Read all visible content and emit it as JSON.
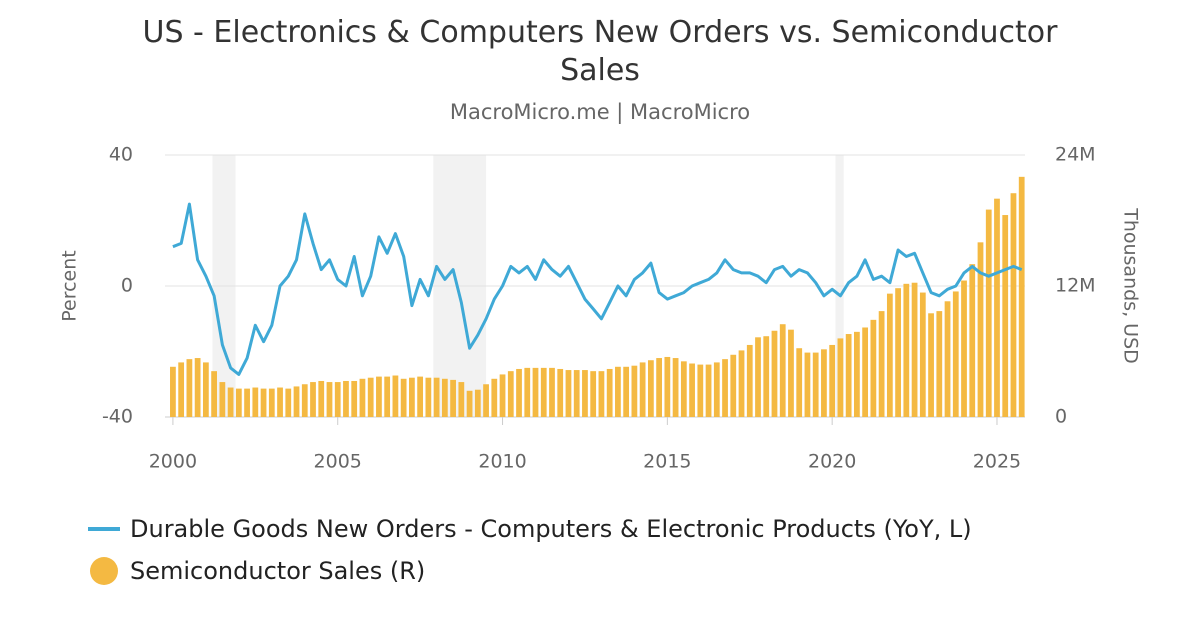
{
  "chart_data": {
    "type": "bar-line",
    "title": "US - Electronics & Computers New Orders vs. Semiconductor Sales",
    "subtitle": "MacroMicro.me | MacroMicro",
    "y_label": "Percent",
    "y2_label": "Thousands, USD",
    "xlim": [
      1999.76,
      2025.85
    ],
    "xticks": [
      2000,
      2005,
      2010,
      2015,
      2020,
      2025
    ],
    "ylim": [
      -40,
      40
    ],
    "yticks": [
      -40,
      0,
      40
    ],
    "y2lim": [
      0,
      24000000
    ],
    "y2ticks": [
      {
        "value": 0,
        "label": "0"
      },
      {
        "value": 12000000,
        "label": "12M"
      },
      {
        "value": 24000000,
        "label": "24M"
      }
    ],
    "grid": true,
    "recessions": [
      [
        2001.2,
        2001.9
      ],
      [
        2007.9,
        2009.5
      ],
      [
        2020.1,
        2020.35
      ]
    ],
    "x": [
      2000,
      2000.25,
      2000.5,
      2000.75,
      2001,
      2001.25,
      2001.5,
      2001.75,
      2002,
      2002.25,
      2002.5,
      2002.75,
      2003,
      2003.25,
      2003.5,
      2003.75,
      2004,
      2004.25,
      2004.5,
      2004.75,
      2005,
      2005.25,
      2005.5,
      2005.75,
      2006,
      2006.25,
      2006.5,
      2006.75,
      2007,
      2007.25,
      2007.5,
      2007.75,
      2008,
      2008.25,
      2008.5,
      2008.75,
      2009,
      2009.25,
      2009.5,
      2009.75,
      2010,
      2010.25,
      2010.5,
      2010.75,
      2011,
      2011.25,
      2011.5,
      2011.75,
      2012,
      2012.25,
      2012.5,
      2012.75,
      2013,
      2013.25,
      2013.5,
      2013.75,
      2014,
      2014.25,
      2014.5,
      2014.75,
      2015,
      2015.25,
      2015.5,
      2015.75,
      2016,
      2016.25,
      2016.5,
      2016.75,
      2017,
      2017.25,
      2017.5,
      2017.75,
      2018,
      2018.25,
      2018.5,
      2018.75,
      2019,
      2019.25,
      2019.5,
      2019.75,
      2020,
      2020.25,
      2020.5,
      2020.75,
      2021,
      2021.25,
      2021.5,
      2021.75,
      2022,
      2022.25,
      2022.5,
      2022.75,
      2023,
      2023.25,
      2023.5,
      2023.75,
      2024,
      2024.25,
      2024.5,
      2024.75,
      2025,
      2025.25,
      2025.5,
      2025.75
    ],
    "series": [
      {
        "name": "Semiconductor Sales (R)",
        "kind": "bar",
        "axis": "y2",
        "color": "#f4b942",
        "values": [
          4600000,
          5000000,
          5300000,
          5400000,
          5000000,
          4200000,
          3200000,
          2700000,
          2600000,
          2600000,
          2700000,
          2600000,
          2600000,
          2700000,
          2600000,
          2800000,
          3000000,
          3200000,
          3300000,
          3200000,
          3200000,
          3300000,
          3300000,
          3500000,
          3600000,
          3700000,
          3700000,
          3800000,
          3500000,
          3600000,
          3700000,
          3600000,
          3600000,
          3500000,
          3400000,
          3200000,
          2400000,
          2500000,
          3000000,
          3500000,
          3900000,
          4200000,
          4400000,
          4500000,
          4500000,
          4500000,
          4500000,
          4400000,
          4300000,
          4300000,
          4300000,
          4200000,
          4200000,
          4400000,
          4600000,
          4600000,
          4700000,
          5000000,
          5200000,
          5400000,
          5500000,
          5400000,
          5100000,
          4900000,
          4800000,
          4800000,
          5000000,
          5300000,
          5700000,
          6100000,
          6600000,
          7300000,
          7400000,
          7900000,
          8500000,
          8000000,
          6300000,
          5900000,
          5900000,
          6200000,
          6600000,
          7200000,
          7600000,
          7800000,
          8200000,
          8900000,
          9700000,
          11300000,
          11800000,
          12200000,
          12300000,
          11400000,
          9500000,
          9700000,
          10600000,
          11500000,
          12500000,
          14000000,
          16000000,
          19000000,
          20000000,
          18500000,
          20500000,
          22000000
        ]
      },
      {
        "name": "Durable Goods New Orders - Computers & Electronic Products (YoY, L)",
        "kind": "line",
        "axis": "y",
        "color": "#3fa9d6",
        "values": [
          12,
          13,
          25,
          8,
          3,
          -3,
          -18,
          -25,
          -27,
          -22,
          -12,
          -17,
          -12,
          0,
          3,
          8,
          22,
          13,
          5,
          8,
          2,
          0,
          9,
          -3,
          3,
          15,
          10,
          16,
          9,
          -6,
          2,
          -3,
          6,
          2,
          5,
          -5,
          -19,
          -15,
          -10,
          -4,
          0,
          6,
          4,
          6,
          2,
          8,
          5,
          3,
          6,
          1,
          -4,
          -7,
          -10,
          -5,
          0,
          -3,
          2,
          4,
          7,
          -2,
          -4,
          -3,
          -2,
          0,
          1,
          2,
          4,
          8,
          5,
          4,
          4,
          3,
          1,
          5,
          6,
          3,
          5,
          4,
          1,
          -3,
          -1,
          -3,
          1,
          3,
          8,
          2,
          3,
          1,
          11,
          9,
          10,
          4,
          -2,
          -3,
          -1,
          0,
          4,
          6,
          4,
          3,
          4,
          5,
          6,
          5
        ]
      }
    ]
  }
}
